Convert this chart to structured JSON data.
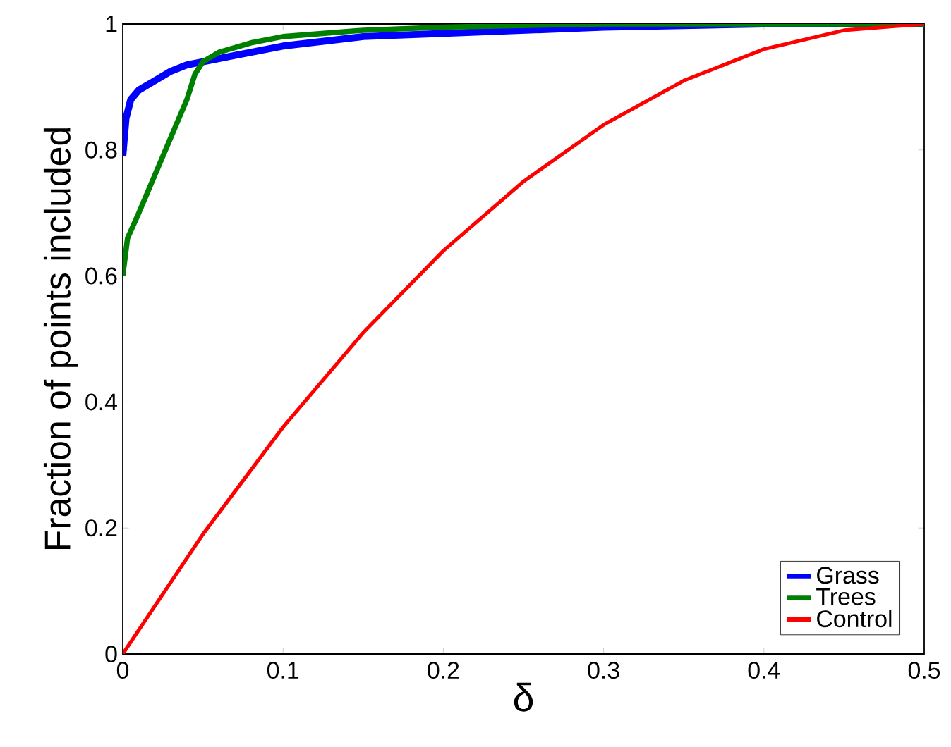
{
  "chart_data": {
    "type": "line",
    "xlabel": "δ",
    "ylabel": "Fraction of points included",
    "xlim": [
      0,
      0.5
    ],
    "ylim": [
      0,
      1
    ],
    "xticks": [
      0,
      0.1,
      0.2,
      0.3,
      0.4,
      0.5
    ],
    "yticks": [
      0,
      0.2,
      0.4,
      0.6,
      0.8,
      1
    ],
    "legend": "bottom right",
    "grid": false,
    "marker": "none",
    "line_style": "solid",
    "series": [
      {
        "name": "Grass",
        "color": "#0000ff",
        "x": [
          0,
          0.002,
          0.005,
          0.01,
          0.02,
          0.03,
          0.04,
          0.05,
          0.07,
          0.1,
          0.15,
          0.2,
          0.3,
          0.4,
          0.5
        ],
        "values": [
          0.79,
          0.85,
          0.88,
          0.895,
          0.91,
          0.925,
          0.935,
          0.94,
          0.95,
          0.965,
          0.98,
          0.985,
          0.995,
          1,
          1
        ]
      },
      {
        "name": "Trees",
        "color": "#008000",
        "x": [
          0,
          0.003,
          0.01,
          0.02,
          0.03,
          0.04,
          0.045,
          0.05,
          0.06,
          0.08,
          0.1,
          0.15,
          0.2,
          0.3,
          0.5
        ],
        "values": [
          0.6,
          0.66,
          0.7,
          0.76,
          0.82,
          0.88,
          0.92,
          0.94,
          0.955,
          0.97,
          0.98,
          0.99,
          0.995,
          1,
          1
        ]
      },
      {
        "name": "Control",
        "color": "#ff0000",
        "x": [
          0,
          0.05,
          0.1,
          0.15,
          0.2,
          0.25,
          0.3,
          0.35,
          0.4,
          0.45,
          0.5
        ],
        "values": [
          0,
          0.19,
          0.36,
          0.51,
          0.64,
          0.75,
          0.84,
          0.91,
          0.96,
          0.99,
          1
        ]
      }
    ]
  }
}
